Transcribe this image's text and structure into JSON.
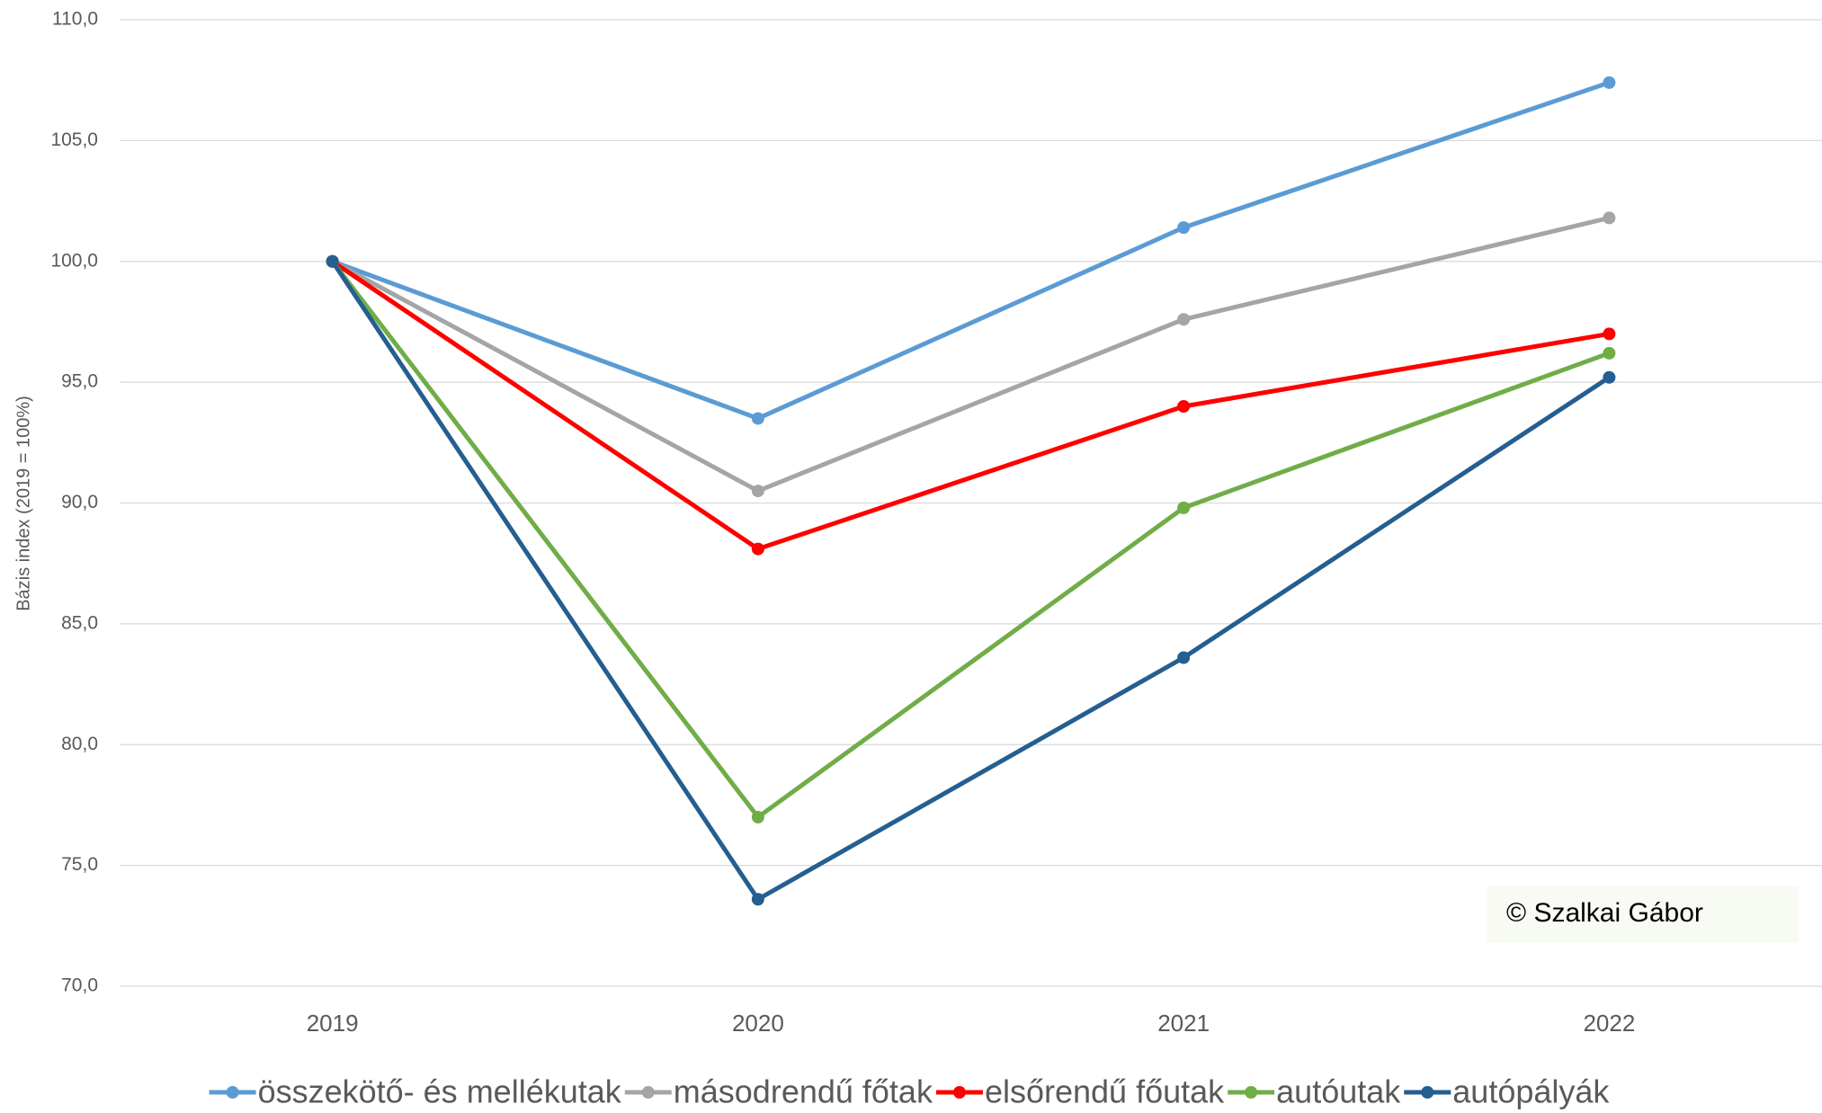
{
  "chart_data": {
    "type": "line",
    "y_label": "Bázis index (2019 = 100%)",
    "annotation": "© Szalkai Gábor",
    "categories": [
      "2019",
      "2020",
      "2021",
      "2022"
    ],
    "series": [
      {
        "name": "összekötő- és mellékutak",
        "color": "#5b9bd5",
        "values": [
          100,
          93.5,
          101.4,
          107.4
        ]
      },
      {
        "name": "másodrendű főtak",
        "color": "#a5a5a5",
        "values": [
          100,
          90.5,
          97.6,
          101.8
        ]
      },
      {
        "name": "elsőrendű főutak",
        "color": "#ff0000",
        "values": [
          100,
          88.1,
          94.0,
          97.0
        ]
      },
      {
        "name": "autóutak",
        "color": "#70ad47",
        "values": [
          100,
          77.0,
          89.8,
          96.2
        ]
      },
      {
        "name": "autópályák",
        "color": "#255e91",
        "values": [
          100,
          73.6,
          83.6,
          95.2
        ]
      }
    ],
    "ylim": [
      70,
      110
    ],
    "yticks": [
      {
        "value": 70,
        "label": "70,0"
      },
      {
        "value": 75,
        "label": "75,0"
      },
      {
        "value": 80,
        "label": "80,0"
      },
      {
        "value": 85,
        "label": "85,0"
      },
      {
        "value": 90,
        "label": "90,0"
      },
      {
        "value": 95,
        "label": "95,0"
      },
      {
        "value": 100,
        "label": "100,0"
      },
      {
        "value": 105,
        "label": "105,0"
      },
      {
        "value": 110,
        "label": "110,0"
      }
    ],
    "grid": true,
    "legend": "bottom"
  }
}
